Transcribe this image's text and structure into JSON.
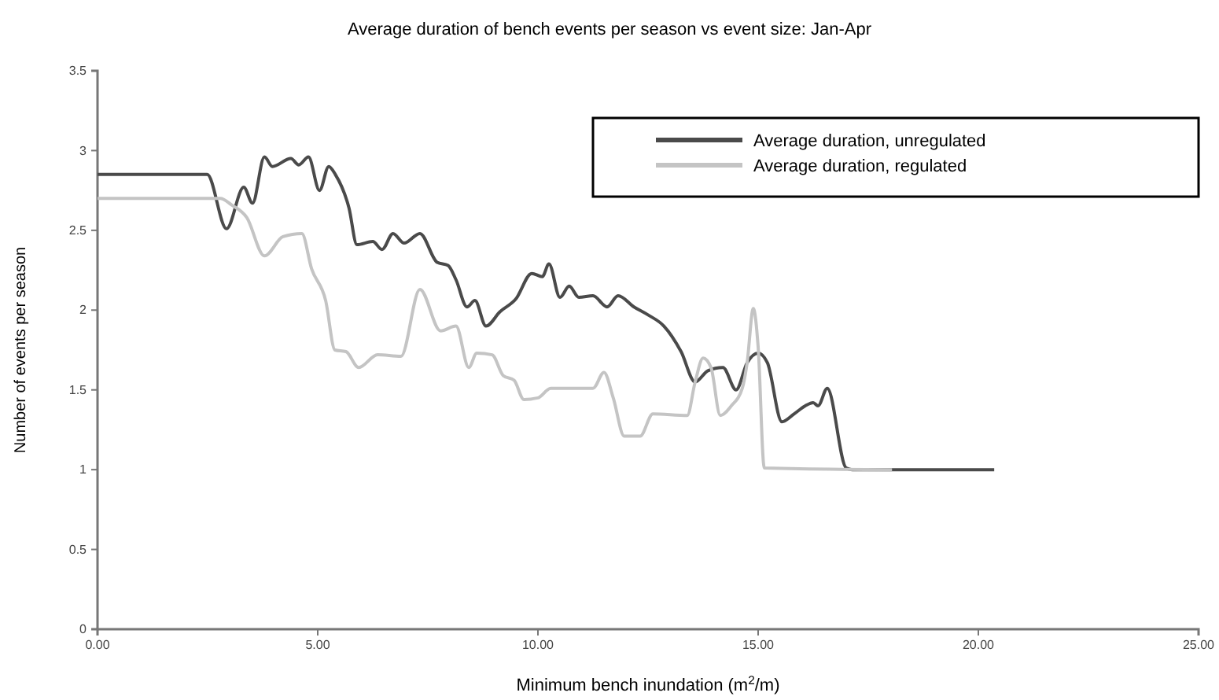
{
  "chart_data": {
    "type": "line",
    "title": "Average duration of bench events per season vs event size: Jan-Apr",
    "xlabel": "Minimum bench inundation (m$^{2}$/m)",
    "ylabel": "Number of events per season",
    "xlim": [
      0,
      25
    ],
    "ylim": [
      0,
      3.5
    ],
    "xticks": [
      {
        "value": 0,
        "label": "0.00"
      },
      {
        "value": 5,
        "label": "5.00"
      },
      {
        "value": 10,
        "label": "10.00"
      },
      {
        "value": 15,
        "label": "15.00"
      },
      {
        "value": 20,
        "label": "20.00"
      },
      {
        "value": 25,
        "label": "25.00"
      }
    ],
    "yticks": [
      0,
      0.5,
      1,
      1.5,
      2,
      2.5,
      3,
      3.5
    ],
    "grid": false,
    "legend": "top right",
    "line_style": "solid",
    "marker": "none",
    "series": [
      {
        "name": "Average duration, unregulated",
        "color": "#4a4a4a",
        "x": [
          0,
          2.49,
          2.93,
          3.32,
          3.52,
          3.79,
          3.97,
          4.39,
          4.57,
          4.79,
          5.04,
          5.25,
          5.4,
          5.71,
          5.89,
          6.25,
          6.46,
          6.71,
          6.96,
          7.32,
          7.71,
          7.96,
          8.14,
          8.39,
          8.57,
          8.82,
          9.14,
          9.5,
          9.86,
          10.1,
          10.25,
          10.5,
          10.71,
          10.93,
          11.25,
          11.57,
          11.82,
          12.18,
          12.5,
          12.86,
          13.25,
          13.57,
          13.86,
          14.2,
          14.5,
          14.75,
          15.0,
          15.21,
          15.54,
          15.82,
          16.07,
          16.25,
          16.36,
          16.57,
          17.0,
          17.14,
          20.36
        ],
        "values": [
          2.85,
          2.85,
          2.51,
          2.77,
          2.67,
          2.96,
          2.9,
          2.95,
          2.91,
          2.96,
          2.75,
          2.9,
          2.85,
          2.64,
          2.41,
          2.43,
          2.38,
          2.48,
          2.42,
          2.48,
          2.3,
          2.28,
          2.19,
          2.02,
          2.06,
          1.9,
          1.99,
          2.07,
          2.23,
          2.21,
          2.29,
          2.08,
          2.15,
          2.08,
          2.09,
          2.02,
          2.09,
          2.02,
          1.97,
          1.9,
          1.74,
          1.55,
          1.62,
          1.64,
          1.5,
          1.67,
          1.73,
          1.67,
          1.3,
          1.35,
          1.4,
          1.42,
          1.4,
          1.51,
          1.01,
          1.0,
          1.0
        ]
      },
      {
        "name": "Average duration, regulated",
        "color": "#c4c4c4",
        "x": [
          0,
          2.79,
          3.04,
          3.39,
          3.79,
          4.21,
          4.64,
          4.86,
          5.18,
          5.39,
          5.64,
          5.93,
          6.36,
          6.89,
          7.32,
          7.79,
          8.14,
          8.43,
          8.61,
          8.96,
          9.21,
          9.46,
          9.68,
          10.0,
          10.29,
          11.25,
          11.5,
          11.71,
          11.96,
          12.32,
          12.61,
          13.39,
          13.57,
          13.75,
          13.93,
          14.14,
          14.39,
          14.64,
          14.75,
          14.89,
          15.0,
          15.14,
          18.04
        ],
        "values": [
          2.7,
          2.7,
          2.66,
          2.58,
          2.34,
          2.46,
          2.48,
          2.26,
          2.06,
          1.75,
          1.74,
          1.64,
          1.72,
          1.71,
          2.13,
          1.87,
          1.9,
          1.64,
          1.73,
          1.72,
          1.59,
          1.56,
          1.44,
          1.45,
          1.51,
          1.51,
          1.61,
          1.45,
          1.21,
          1.21,
          1.35,
          1.34,
          1.55,
          1.7,
          1.64,
          1.34,
          1.4,
          1.51,
          1.67,
          2.01,
          1.77,
          1.01,
          1.0
        ]
      }
    ]
  }
}
